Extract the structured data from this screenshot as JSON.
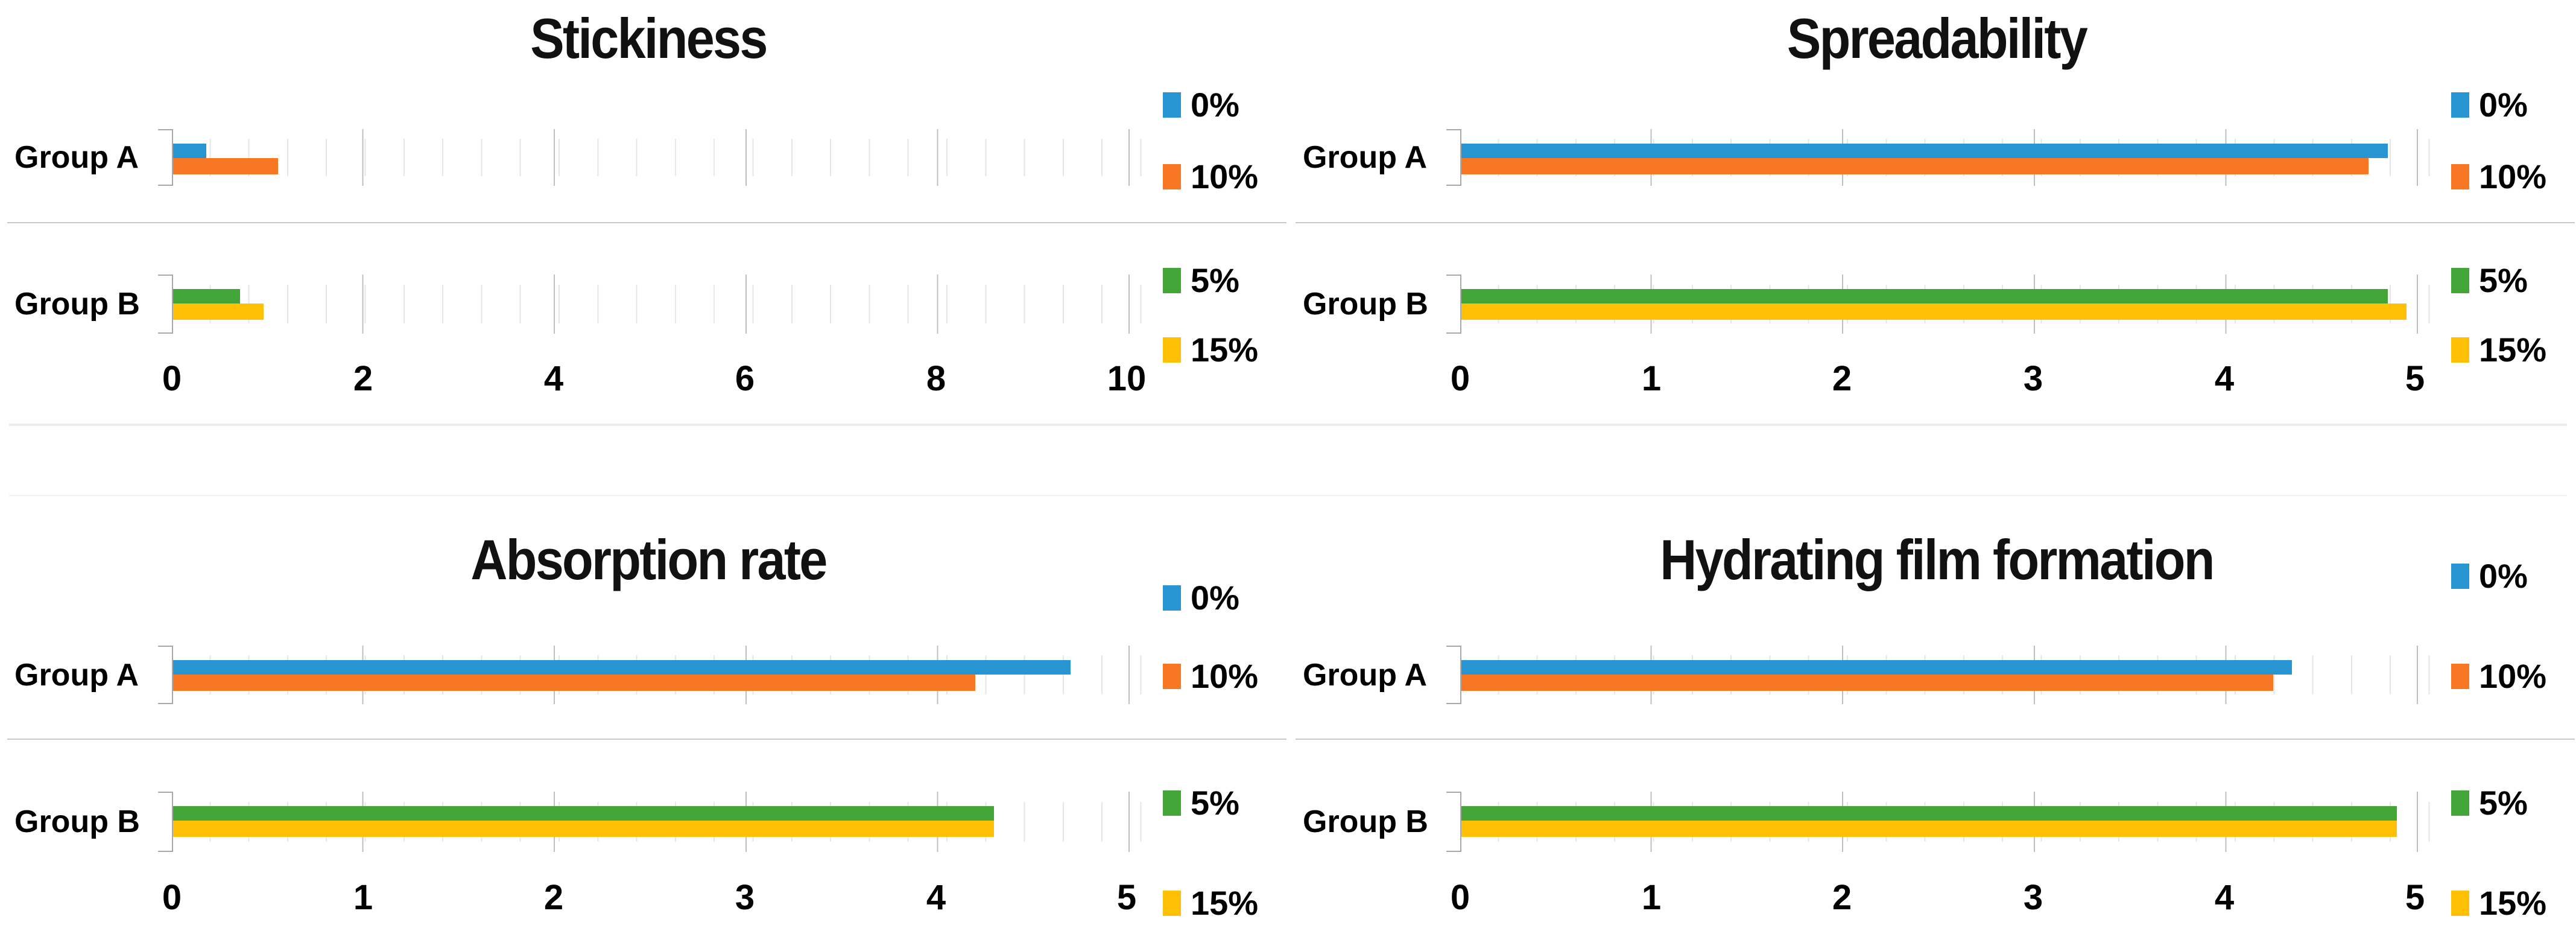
{
  "chart_data": [
    {
      "type": "bar",
      "orientation": "horizontal",
      "title": "Stickiness",
      "xlim": [
        0,
        10
      ],
      "xticks": [
        0,
        2,
        4,
        6,
        8,
        10
      ],
      "xtick_labels": [
        "0",
        "2",
        "4",
        "6",
        "8",
        "10"
      ],
      "minor_unit": 0.4,
      "grid": true,
      "legend_position": "right",
      "rows": [
        {
          "category": "Group A",
          "bars": [
            {
              "series": "0%",
              "value": 0.35,
              "color": "#2795D2"
            },
            {
              "series": "10%",
              "value": 1.1,
              "color": "#F87722"
            }
          ]
        },
        {
          "category": "Group B",
          "bars": [
            {
              "series": "5%",
              "value": 0.7,
              "color": "#43A538"
            },
            {
              "series": "15%",
              "value": 0.95,
              "color": "#FFC005"
            }
          ]
        }
      ],
      "legend": [
        {
          "label": "0%",
          "color": "#2795D2"
        },
        {
          "label": "10%",
          "color": "#F87722"
        },
        {
          "label": "5%",
          "color": "#43A538"
        },
        {
          "label": "15%",
          "color": "#FFC005"
        }
      ]
    },
    {
      "type": "bar",
      "orientation": "horizontal",
      "title": "Spreadability",
      "xlim": [
        0,
        5
      ],
      "xticks": [
        0,
        1,
        2,
        3,
        4,
        5
      ],
      "xtick_labels": [
        "0",
        "1",
        "2",
        "3",
        "4",
        "5"
      ],
      "minor_unit": 0.2,
      "grid": true,
      "legend_position": "right",
      "rows": [
        {
          "category": "Group A",
          "bars": [
            {
              "series": "0%",
              "value": 4.85,
              "color": "#2795D2"
            },
            {
              "series": "10%",
              "value": 4.75,
              "color": "#F87722"
            }
          ]
        },
        {
          "category": "Group B",
          "bars": [
            {
              "series": "5%",
              "value": 4.85,
              "color": "#43A538"
            },
            {
              "series": "15%",
              "value": 4.95,
              "color": "#FFC005"
            }
          ]
        }
      ],
      "legend": [
        {
          "label": "0%",
          "color": "#2795D2"
        },
        {
          "label": "10%",
          "color": "#F87722"
        },
        {
          "label": "5%",
          "color": "#43A538"
        },
        {
          "label": "15%",
          "color": "#FFC005"
        }
      ]
    },
    {
      "type": "bar",
      "orientation": "horizontal",
      "title": "Absorption rate",
      "xlim": [
        0,
        5
      ],
      "xticks": [
        0,
        1,
        2,
        3,
        4,
        5
      ],
      "xtick_labels": [
        "0",
        "1",
        "2",
        "3",
        "4",
        "5"
      ],
      "minor_unit": 0.2,
      "grid": true,
      "legend_position": "right",
      "rows": [
        {
          "category": "Group A",
          "bars": [
            {
              "series": "0%",
              "value": 4.7,
              "color": "#2795D2"
            },
            {
              "series": "10%",
              "value": 4.2,
              "color": "#F87722"
            }
          ]
        },
        {
          "category": "Group B",
          "bars": [
            {
              "series": "5%",
              "value": 4.3,
              "color": "#43A538"
            },
            {
              "series": "15%",
              "value": 4.3,
              "color": "#FFC005"
            }
          ]
        }
      ],
      "legend": [
        {
          "label": "0%",
          "color": "#2795D2"
        },
        {
          "label": "10%",
          "color": "#F87722"
        },
        {
          "label": "5%",
          "color": "#43A538"
        },
        {
          "label": "15%",
          "color": "#FFC005"
        }
      ]
    },
    {
      "type": "bar",
      "orientation": "horizontal",
      "title": "Hydrating film formation",
      "xlim": [
        0,
        5
      ],
      "xticks": [
        0,
        1,
        2,
        3,
        4,
        5
      ],
      "xtick_labels": [
        "0",
        "1",
        "2",
        "3",
        "4",
        "5"
      ],
      "minor_unit": 0.2,
      "grid": true,
      "legend_position": "right",
      "rows": [
        {
          "category": "Group A",
          "bars": [
            {
              "series": "0%",
              "value": 4.35,
              "color": "#2795D2"
            },
            {
              "series": "10%",
              "value": 4.25,
              "color": "#F87722"
            }
          ]
        },
        {
          "category": "Group B",
          "bars": [
            {
              "series": "5%",
              "value": 4.9,
              "color": "#43A538"
            },
            {
              "series": "15%",
              "value": 4.9,
              "color": "#FFC005"
            }
          ]
        }
      ],
      "legend": [
        {
          "label": "0%",
          "color": "#2795D2"
        },
        {
          "label": "10%",
          "color": "#F87722"
        },
        {
          "label": "5%",
          "color": "#43A538"
        },
        {
          "label": "15%",
          "color": "#FFC005"
        }
      ]
    }
  ]
}
